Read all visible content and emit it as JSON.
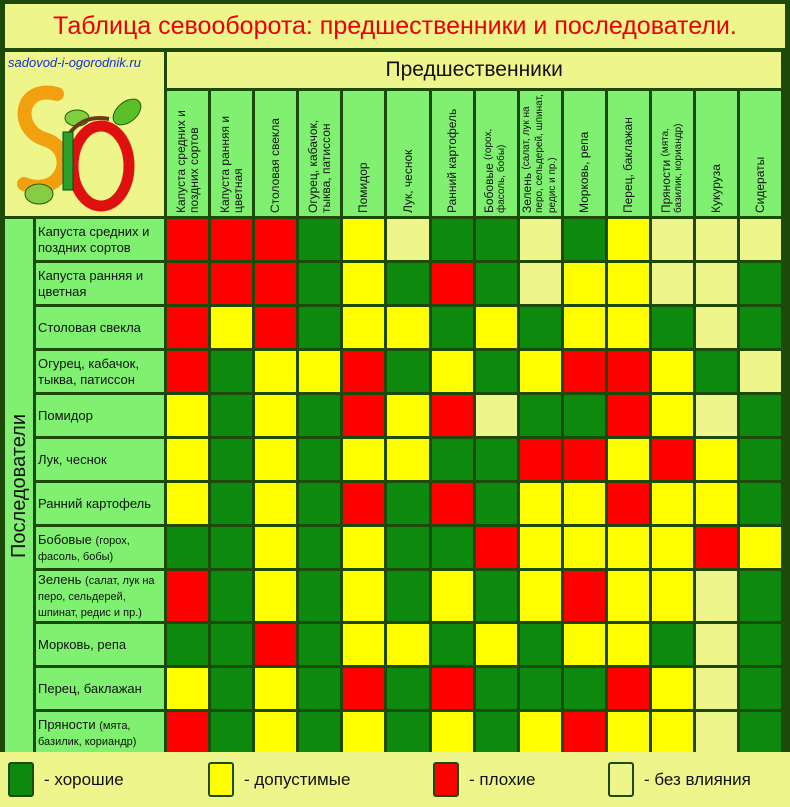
{
  "title": "Таблица севооборота: предшественники и последователи.",
  "site": "sadovod-i-ogorodnik.ru",
  "logo_letters": "SIO",
  "predecessors_label": "Предшественники",
  "successors_label": "Последователи",
  "columns": [
    {
      "main": "Капуста средних и поздних сортов",
      "sub": ""
    },
    {
      "main": "Капуста ранняя и цветная",
      "sub": ""
    },
    {
      "main": "Столовая свекла",
      "sub": ""
    },
    {
      "main": "Огурец, кабачок, тыква, патиссон",
      "sub": ""
    },
    {
      "main": "Помидор",
      "sub": ""
    },
    {
      "main": "Лук, чеснок",
      "sub": ""
    },
    {
      "main": "Ранний картофель",
      "sub": ""
    },
    {
      "main": "Бобовые",
      "sub": "(горох, фасоль, бобы)"
    },
    {
      "main": "Зелень",
      "sub": "(салат, лук на перо, сельдерей, шпинат, редис и пр.)"
    },
    {
      "main": "Морковь, репа",
      "sub": ""
    },
    {
      "main": "Перец, баклажан",
      "sub": ""
    },
    {
      "main": "Пряности",
      "sub": "(мята, базилик, кориандр)"
    },
    {
      "main": "Кукуруза",
      "sub": ""
    },
    {
      "main": "Сидераты",
      "sub": ""
    }
  ],
  "rows": [
    {
      "main": "Капуста средних и поздних сортов",
      "sub": "",
      "cells": "RRRGYNGGNGYNNN"
    },
    {
      "main": "Капуста ранняя и цветная",
      "sub": "",
      "cells": "RRRGYGRGNYYNNG"
    },
    {
      "main": "Столовая свекла",
      "sub": "",
      "cells": "RYRGYYGYGYYGNG"
    },
    {
      "main": "Огурец, кабачок, тыква, патиссон",
      "sub": "",
      "cells": "RGYYRGYGYRRYGN"
    },
    {
      "main": "Помидор",
      "sub": "",
      "cells": "YGYGRYRNGGRYNG"
    },
    {
      "main": "Лук, чеснок",
      "sub": "",
      "cells": "YGYGYYGGRRYRYG"
    },
    {
      "main": "Ранний картофель",
      "sub": "",
      "cells": "YGYGRGRGYYRYYG"
    },
    {
      "main": "Бобовые",
      "sub": "(горох, фасоль, бобы)",
      "cells": "GGYGYGGRYYYYRY"
    },
    {
      "main": "Зелень",
      "sub": "(салат, лук на перо, сельдерей, шпинат, редис и пр.)",
      "cells": "RGYGYGYGYRYYNG"
    },
    {
      "main": "Морковь, репа",
      "sub": "",
      "cells": "GGRGYYGYGYYGNG"
    },
    {
      "main": "Перец, баклажан",
      "sub": "",
      "cells": "YGYGRGRGGGRYNG"
    },
    {
      "main": "Пряности",
      "sub": "(мята, базилик, кориандр)",
      "cells": "RGYGYGYGYRYYNG"
    }
  ],
  "legend": [
    {
      "key": "G",
      "label": "- хорошие",
      "color": "#0d8a0d"
    },
    {
      "key": "Y",
      "label": "- допустимые",
      "color": "#ffff00"
    },
    {
      "key": "R",
      "label": "- плохие",
      "color": "#ff0000"
    },
    {
      "key": "N",
      "label": "- без влияния",
      "color": "#eef58a"
    }
  ]
}
